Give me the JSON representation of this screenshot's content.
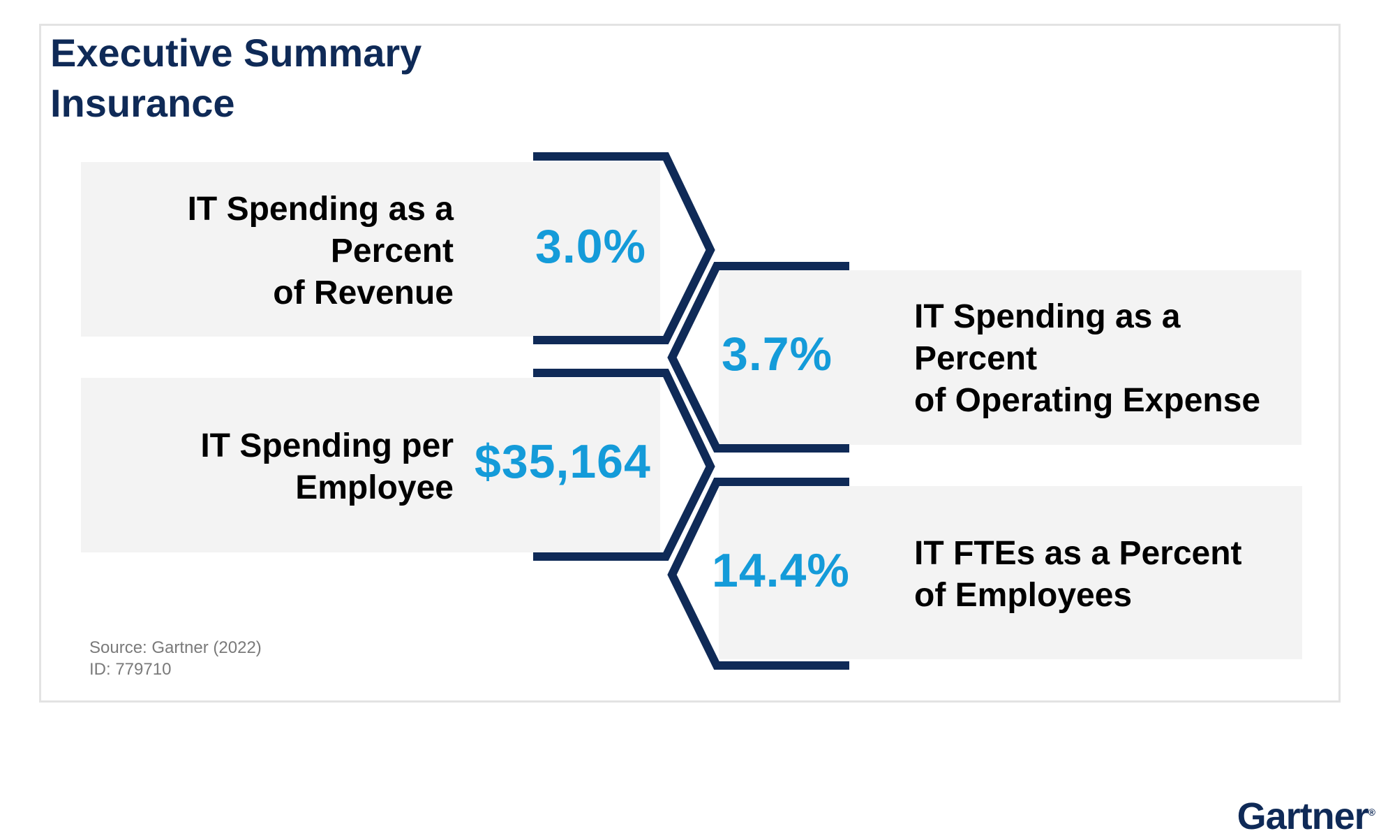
{
  "title": {
    "line1": "Executive Summary",
    "line2": "Insurance"
  },
  "metrics": [
    {
      "label": "IT Spending as a\nPercent\nof Revenue",
      "value": "3.0%"
    },
    {
      "label": "IT Spending as a\nPercent\n of Operating Expense",
      "value": "3.7%"
    },
    {
      "label": "IT Spending per\nEmployee",
      "value": "$35,164"
    },
    {
      "label": "IT FTEs as a Percent\nof Employees",
      "value": "14.4%"
    }
  ],
  "source": {
    "line1": "Source: Gartner (2022)",
    "line2": "ID: 779710"
  },
  "brand": "Gartner",
  "colors": {
    "navy": "#0f2a57",
    "accent_blue": "#149bd9",
    "panel_gray": "#f3f3f3"
  }
}
